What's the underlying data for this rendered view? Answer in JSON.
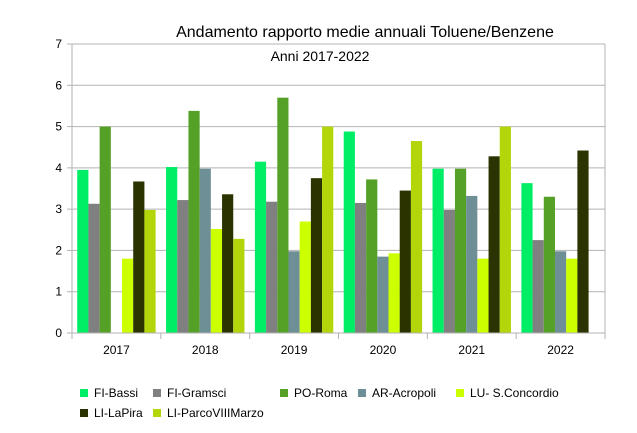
{
  "chart_data": {
    "type": "bar",
    "title": "Andamento rapporto medie annuali Toluene/Benzene",
    "subtitle": "Anni 2017-2022",
    "categories": [
      "2017",
      "2018",
      "2019",
      "2020",
      "2021",
      "2022"
    ],
    "ylim": [
      0,
      7
    ],
    "yticks": [
      "0",
      "1",
      "2",
      "3",
      "4",
      "5",
      "6",
      "7"
    ],
    "grid": true,
    "legend_position": "bottom",
    "series": [
      {
        "name": "FI-Bassi",
        "color": "#00ee66",
        "values": [
          3.95,
          4.02,
          4.15,
          4.88,
          3.98,
          3.63
        ]
      },
      {
        "name": "FI-Gramsci",
        "color": "#808080",
        "values": [
          3.13,
          3.22,
          3.18,
          3.15,
          2.98,
          2.25
        ]
      },
      {
        "name": "PO-Roma",
        "color": "#55a128",
        "values": [
          5.0,
          5.38,
          5.7,
          3.72,
          3.98,
          3.3
        ]
      },
      {
        "name": "AR-Acropoli",
        "color": "#6f8f97",
        "values": [
          0,
          3.98,
          1.98,
          1.85,
          3.32,
          1.98
        ]
      },
      {
        "name": "LU- S.Concordio",
        "color": "#ccff00",
        "values": [
          1.8,
          2.52,
          2.7,
          1.93,
          1.8,
          1.8
        ]
      },
      {
        "name": "LI-LaPira",
        "color": "#2b3300",
        "values": [
          3.67,
          3.36,
          3.75,
          3.45,
          4.28,
          4.42
        ]
      },
      {
        "name": "LI-ParcoVIIIMarzo",
        "color": "#b3d60a",
        "values": [
          2.98,
          2.28,
          5.0,
          4.65,
          5.0,
          0
        ]
      }
    ]
  }
}
